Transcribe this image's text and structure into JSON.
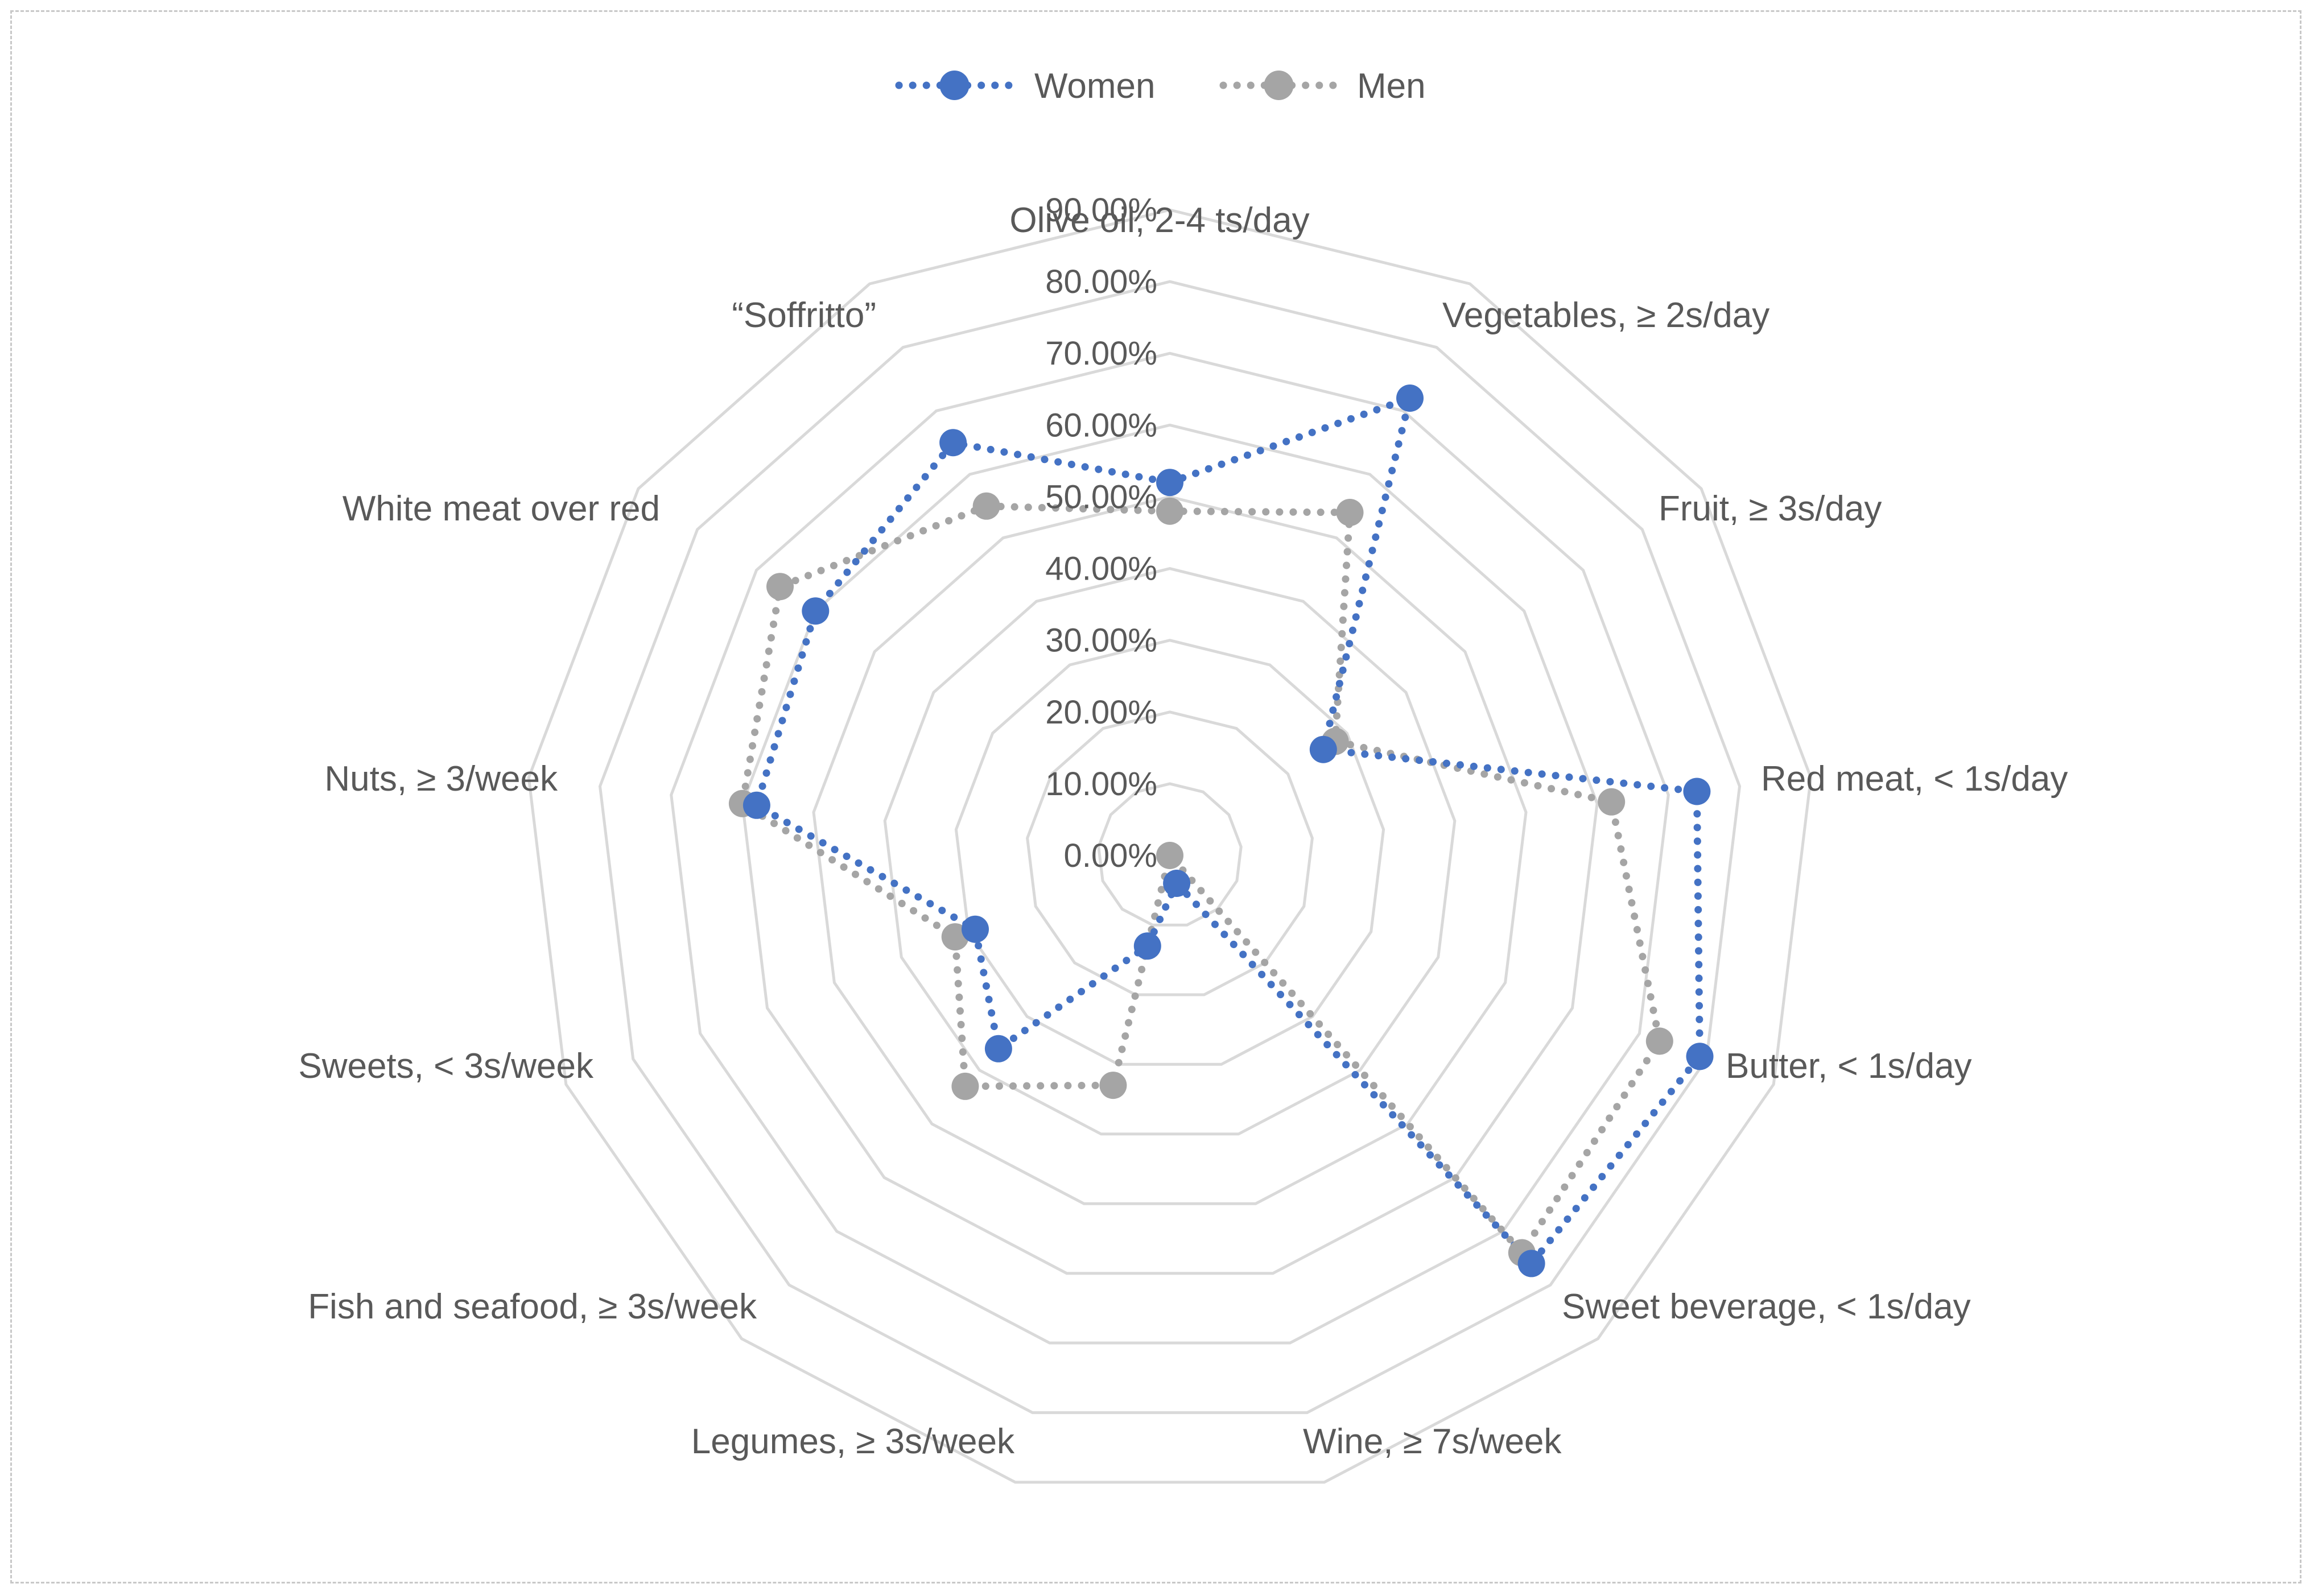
{
  "chart_data": {
    "type": "radar",
    "title": "",
    "categories": [
      "Olive oil, 2-4 ts/day",
      "Vegetables, ≥ 2s/day",
      "Fruit, ≥ 3s/day",
      "Red meat, < 1s/day",
      "Butter, < 1s/day",
      "Sweet beverage, < 1s/day",
      "Wine, ≥ 7s/week",
      "Legumes, ≥ 3s/week",
      "Fish and seafood, ≥ 3s/week",
      "Sweets, < 3s/week",
      "Nuts, ≥ 3/week",
      "White meat over red",
      "“Soffritto”"
    ],
    "series": [
      {
        "name": "Women",
        "color": "#4472C4",
        "values": [
          52,
          72,
          26,
          74,
          79,
          76,
          4,
          13,
          36,
          29,
          58,
          60,
          65
        ],
        "style": "dotted-line-with-markers"
      },
      {
        "name": "Men",
        "color": "#A5A5A5",
        "values": [
          48,
          54,
          28,
          62,
          73,
          74,
          0,
          33,
          43,
          32,
          60,
          66,
          55
        ],
        "style": "dotted-line-with-markers"
      }
    ],
    "axis": {
      "min": 0,
      "max": 90,
      "step": 10,
      "tick_labels": [
        "0.00%",
        "10.00%",
        "20.00%",
        "30.00%",
        "40.00%",
        "50.00%",
        "60.00%",
        "70.00%",
        "80.00%",
        "90.00%"
      ]
    },
    "grid_color": "#D9D9D9",
    "legend_position": "top"
  }
}
